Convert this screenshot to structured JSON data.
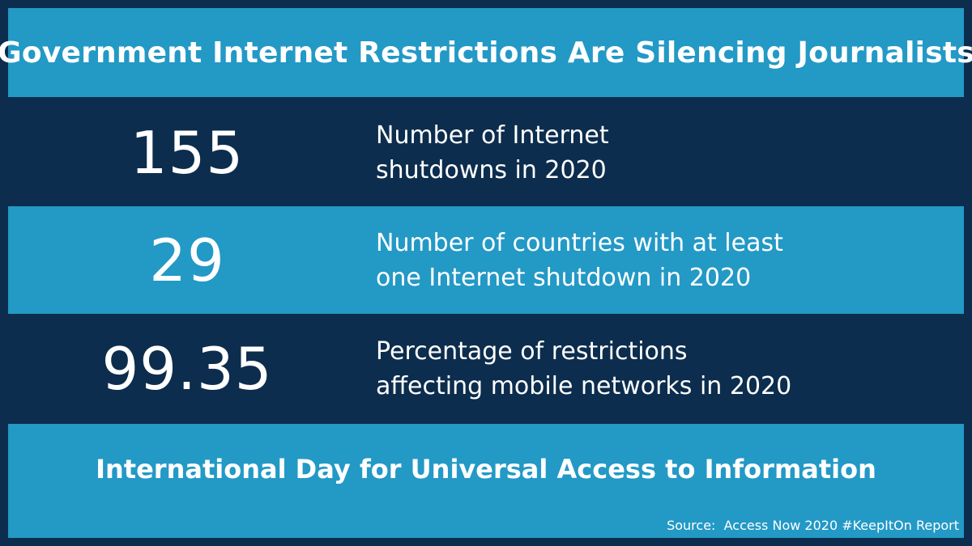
{
  "header": {
    "title": "Government Internet Restrictions Are Silencing Journalists"
  },
  "stats": [
    {
      "value": "155",
      "description_line1": "Number of Internet",
      "description_line2": "shutdowns in 2020"
    },
    {
      "value": "29",
      "description_line1": "Number of countries with at least",
      "description_line2": "one Internet shutdown in 2020"
    },
    {
      "value": "99.35",
      "description_line1": "Percentage of restrictions",
      "description_line2": "affecting mobile networks in 2020"
    }
  ],
  "footer": {
    "title": "International Day for Universal Access to Information",
    "source": "Source:  Access Now 2020 #KeepItOn Report"
  },
  "colors": {
    "light_blue": "#2399c6",
    "dark_navy": "#0c2d4d",
    "text": "#ffffff"
  }
}
